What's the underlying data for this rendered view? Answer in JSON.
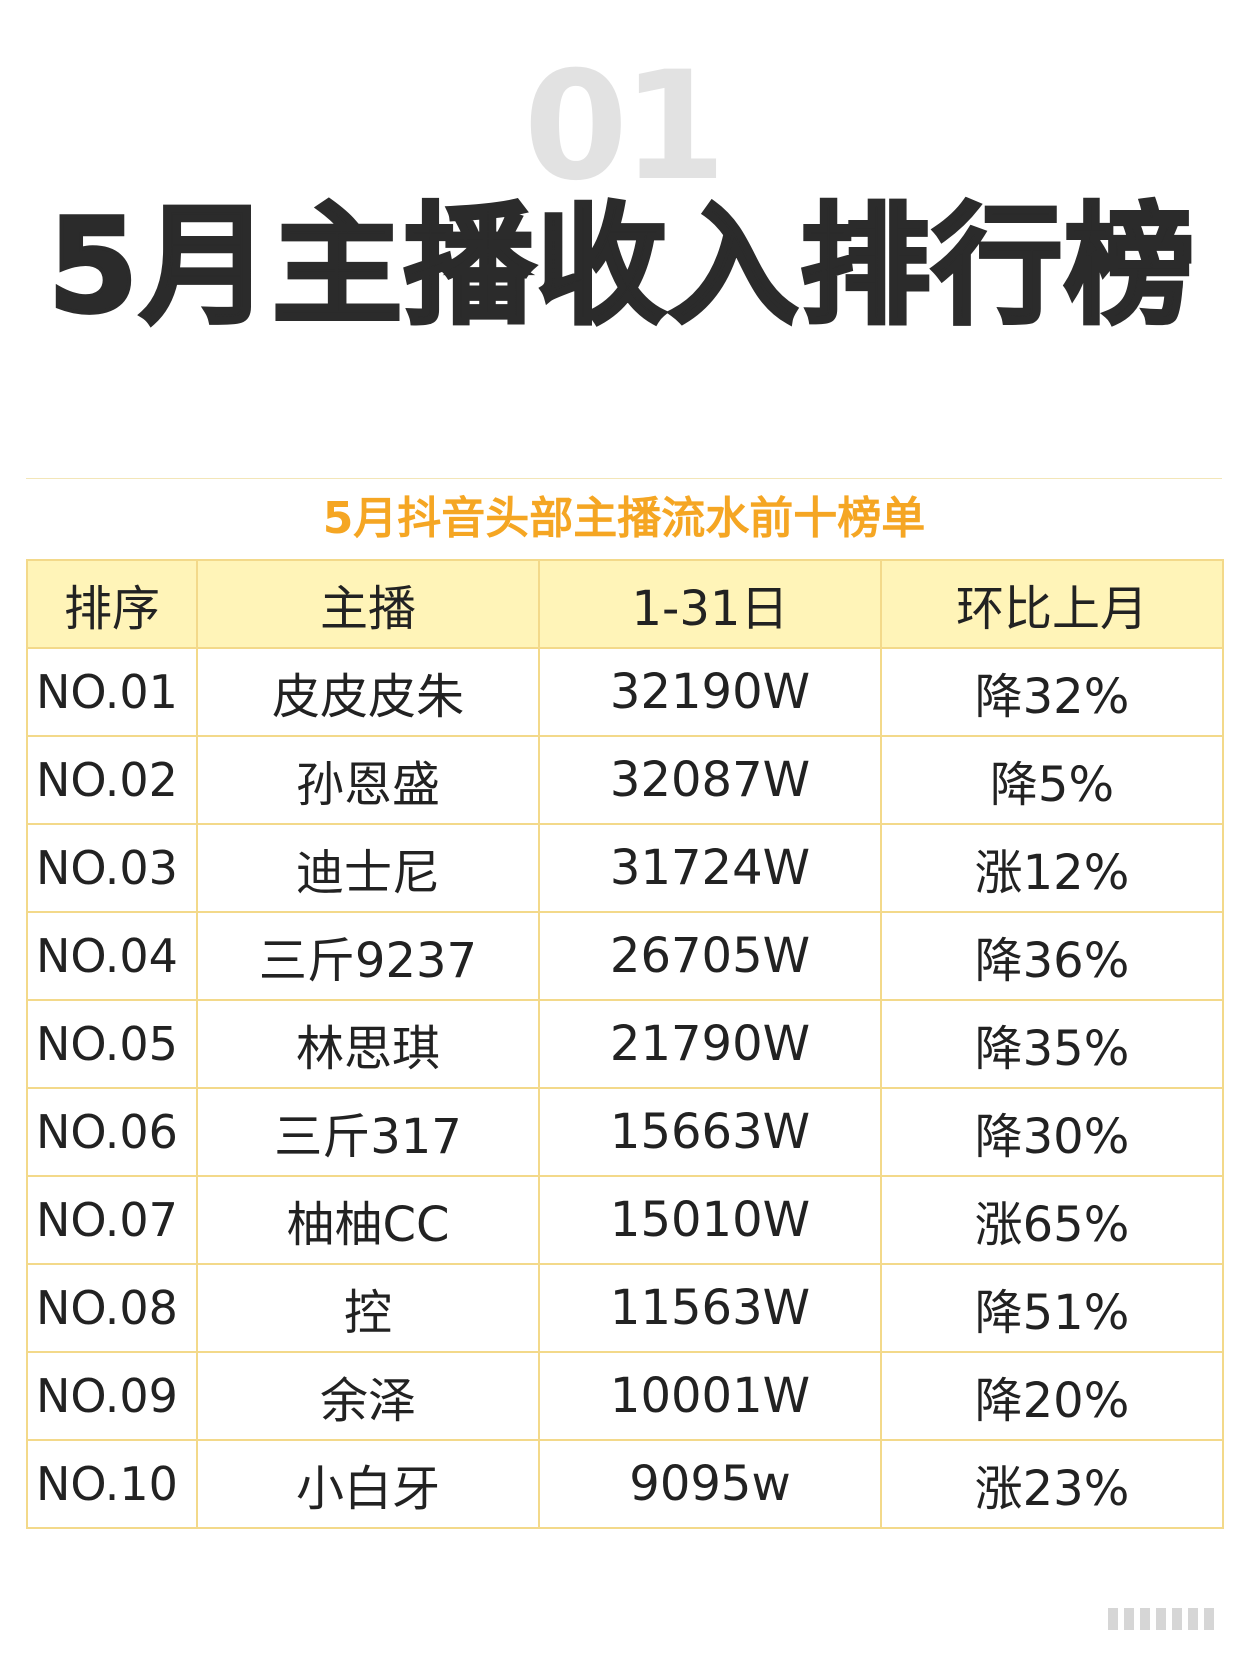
{
  "header": {
    "number": "01",
    "title": "5月主播收入排行榜"
  },
  "table": {
    "caption": "5月抖音头部主播流水前十榜单",
    "columns": [
      "排序",
      "主播",
      "1-31日",
      "环比上月"
    ],
    "rows": [
      {
        "rank": "NO.01",
        "name": "皮皮皮朱",
        "income": "32190W",
        "change": "降32%"
      },
      {
        "rank": "NO.02",
        "name": "孙恩盛",
        "income": "32087W",
        "change": "降5%"
      },
      {
        "rank": "NO.03",
        "name": "迪士尼",
        "income": "31724W",
        "change": "涨12%"
      },
      {
        "rank": "NO.04",
        "name": "三斤9237",
        "income": "26705W",
        "change": "降36%"
      },
      {
        "rank": "NO.05",
        "name": "林思琪",
        "income": "21790W",
        "change": "降35%"
      },
      {
        "rank": "NO.06",
        "name": "三斤317",
        "income": "15663W",
        "change": "降30%"
      },
      {
        "rank": "NO.07",
        "name": "柚柚CC",
        "income": "15010W",
        "change": "涨65%"
      },
      {
        "rank": "NO.08",
        "name": "控",
        "income": "11563W",
        "change": "降51%"
      },
      {
        "rank": "NO.09",
        "name": "余泽",
        "income": "10001W",
        "change": "降20%"
      },
      {
        "rank": "NO.10",
        "name": "小白牙",
        "income": "9095w",
        "change": "涨23%"
      }
    ]
  },
  "colors": {
    "caption": "#f5a623",
    "header_bg": "#fff4b8",
    "border": "#f3d98a",
    "title": "#2b2b2b",
    "watermark": "#e2e2e2"
  }
}
